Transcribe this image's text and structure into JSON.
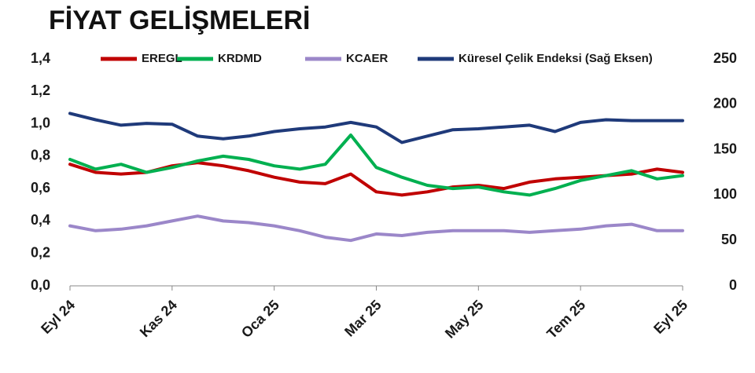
{
  "chart_data": {
    "type": "line",
    "title": "FİYAT GELİŞMELERİ",
    "categories": [
      "Eyl 24",
      null,
      null,
      null,
      "Kas 24",
      null,
      null,
      null,
      "Oca 25",
      null,
      null,
      null,
      "Mar 25",
      null,
      null,
      null,
      "May 25",
      null,
      null,
      null,
      "Tem 25",
      null,
      null,
      null,
      "Eyl 25"
    ],
    "series": [
      {
        "name": "EREGL",
        "color": "#c00000",
        "values": [
          0.75,
          0.7,
          0.69,
          0.7,
          0.74,
          0.76,
          0.74,
          0.71,
          0.67,
          0.64,
          0.63,
          0.69,
          0.58,
          0.56,
          0.58,
          0.61,
          0.62,
          0.6,
          0.64,
          0.66,
          0.67,
          0.68,
          0.69,
          0.72,
          0.7
        ]
      },
      {
        "name": "KRDMD",
        "color": "#00b050",
        "values": [
          0.78,
          0.72,
          0.75,
          0.7,
          0.73,
          0.77,
          0.8,
          0.78,
          0.74,
          0.72,
          0.75,
          0.93,
          0.73,
          0.67,
          0.62,
          0.6,
          0.61,
          0.58,
          0.56,
          0.6,
          0.65,
          0.68,
          0.71,
          0.66,
          0.68
        ]
      },
      {
        "name": "KCAER",
        "color": "#9b87c9",
        "values": [
          0.37,
          0.34,
          0.35,
          0.37,
          0.4,
          0.43,
          0.4,
          0.39,
          0.37,
          0.34,
          0.3,
          0.28,
          0.32,
          0.31,
          0.33,
          0.34,
          0.34,
          0.34,
          0.33,
          0.34,
          0.35,
          0.37,
          0.38,
          0.34,
          0.34
        ]
      },
      {
        "name": "Küresel Çelik Endeksi (Sağ Eksen)",
        "color": "#1f3a7a",
        "axis": "y2",
        "values": [
          190,
          183,
          177,
          179,
          178,
          165,
          162,
          165,
          170,
          173,
          175,
          180,
          175,
          158,
          165,
          172,
          173,
          175,
          177,
          170,
          180,
          183,
          182,
          182,
          182
        ]
      }
    ],
    "ylim": [
      0,
      1.4
    ],
    "yticks": [
      {
        "value": 0,
        "label": "0,0"
      },
      {
        "value": 0.2,
        "label": "0,2"
      },
      {
        "value": 0.4,
        "label": "0,4"
      },
      {
        "value": 0.6,
        "label": "0,6"
      },
      {
        "value": 0.8,
        "label": "0,8"
      },
      {
        "value": 1.0,
        "label": "1,0"
      },
      {
        "value": 1.2,
        "label": "1,2"
      },
      {
        "value": 1.4,
        "label": "1,4"
      }
    ],
    "y2lim": [
      0,
      250
    ],
    "y2ticks": [
      0,
      50,
      100,
      150,
      200,
      250
    ],
    "grid": false
  }
}
